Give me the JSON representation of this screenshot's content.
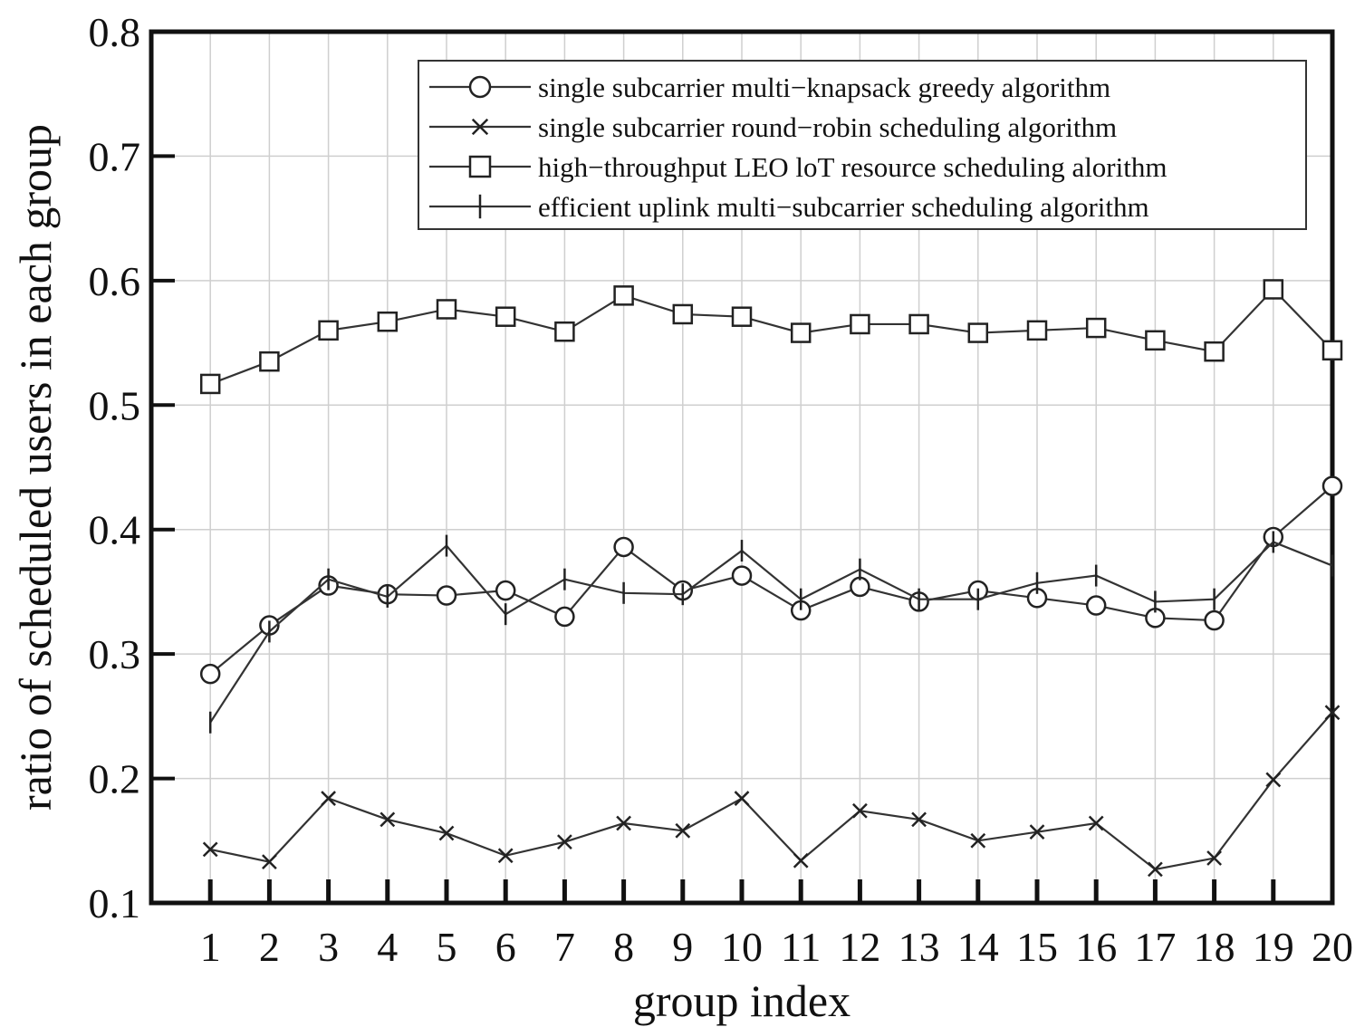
{
  "chart_data": {
    "type": "line",
    "title": "",
    "xlabel": "group index",
    "ylabel": "ratio of scheduled users in each group",
    "x": [
      1,
      2,
      3,
      4,
      5,
      6,
      7,
      8,
      9,
      10,
      11,
      12,
      13,
      14,
      15,
      16,
      17,
      18,
      19,
      20
    ],
    "xlim": [
      0,
      20
    ],
    "ylim": [
      0.1,
      0.8
    ],
    "yticks": [
      "0.1",
      "0.2",
      "0.3",
      "0.4",
      "0.5",
      "0.6",
      "0.7",
      "0.8"
    ],
    "grid": true,
    "legend_position": "top-right",
    "series": [
      {
        "name": "single subcarrier multi−knapsack greedy algorithm",
        "marker": "circle",
        "values": [
          0.284,
          0.323,
          0.355,
          0.348,
          0.347,
          0.351,
          0.33,
          0.386,
          0.351,
          0.363,
          0.335,
          0.354,
          0.342,
          0.351,
          0.345,
          0.339,
          0.329,
          0.327,
          0.394,
          0.435
        ]
      },
      {
        "name": "single subcarrier round−robin scheduling algorithm",
        "marker": "x",
        "values": [
          0.143,
          0.133,
          0.184,
          0.167,
          0.156,
          0.138,
          0.149,
          0.164,
          0.158,
          0.184,
          0.134,
          0.174,
          0.167,
          0.15,
          0.157,
          0.164,
          0.127,
          0.136,
          0.199,
          0.253
        ]
      },
      {
        "name": "high−throughput LEO loT resource scheduling alorithm",
        "marker": "square",
        "values": [
          0.517,
          0.535,
          0.56,
          0.567,
          0.577,
          0.571,
          0.559,
          0.588,
          0.573,
          0.571,
          0.558,
          0.565,
          0.565,
          0.558,
          0.56,
          0.562,
          0.552,
          0.543,
          0.593,
          0.544
        ]
      },
      {
        "name": "efficient uplink multi−subcarrier scheduling algorithm",
        "marker": "plus",
        "values": [
          0.245,
          0.318,
          0.36,
          0.346,
          0.387,
          0.332,
          0.36,
          0.349,
          0.348,
          0.383,
          0.344,
          0.368,
          0.344,
          0.344,
          0.357,
          0.363,
          0.342,
          0.344,
          0.39,
          0.371
        ]
      }
    ]
  }
}
